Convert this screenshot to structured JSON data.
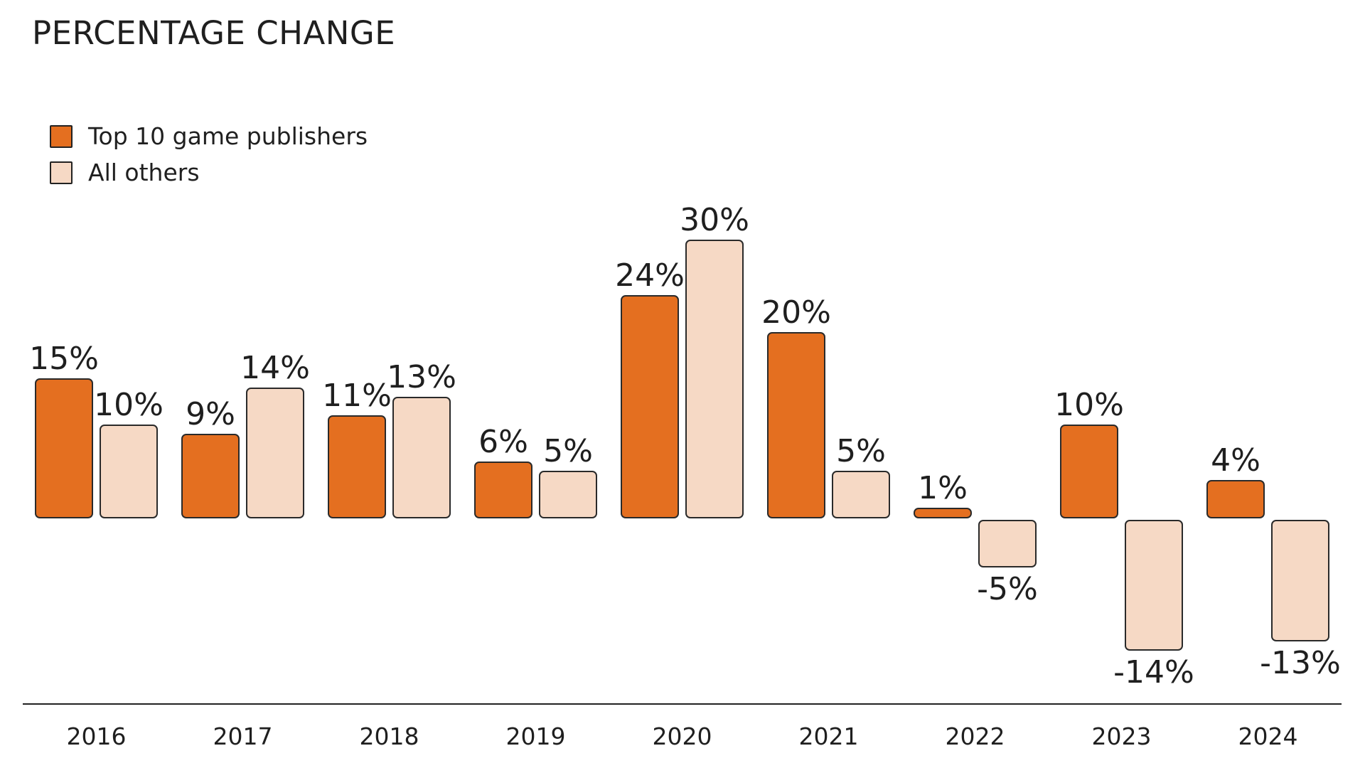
{
  "chart_data": {
    "type": "bar",
    "title": "PERCENTAGE CHANGE",
    "xlabel": "",
    "ylabel": "",
    "ylim": [
      -15,
      30
    ],
    "categories": [
      "2016",
      "2017",
      "2018",
      "2019",
      "2020",
      "2021",
      "2022",
      "2023",
      "2024"
    ],
    "series": [
      {
        "name": "Top 10 game publishers",
        "color": "#e46f20",
        "values": [
          15,
          9,
          11,
          6,
          24,
          20,
          1,
          10,
          4
        ],
        "labels": [
          "15%",
          "9%",
          "11%",
          "6%",
          "24%",
          "20%",
          "1%",
          "10%",
          "4%"
        ]
      },
      {
        "name": "All others",
        "color": "#f6d9c5",
        "values": [
          10,
          14,
          13,
          5,
          30,
          5,
          -5,
          -14,
          -13
        ],
        "labels": [
          "10%",
          "14%",
          "13%",
          "5%",
          "30%",
          "5%",
          "-5%",
          "-14%",
          "-13%"
        ]
      }
    ],
    "legend_position": "top-left",
    "grid": false
  }
}
